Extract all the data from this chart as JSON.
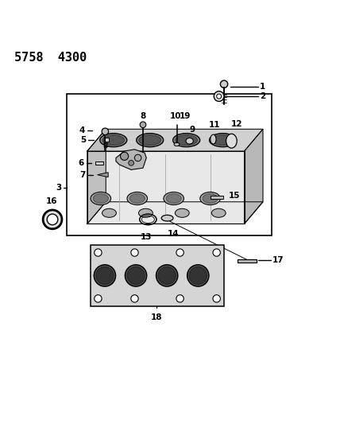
{
  "title": "5758  4300",
  "bg_color": "#ffffff",
  "line_color": "#000000",
  "fig_width": 4.28,
  "fig_height": 5.33,
  "dpi": 100
}
